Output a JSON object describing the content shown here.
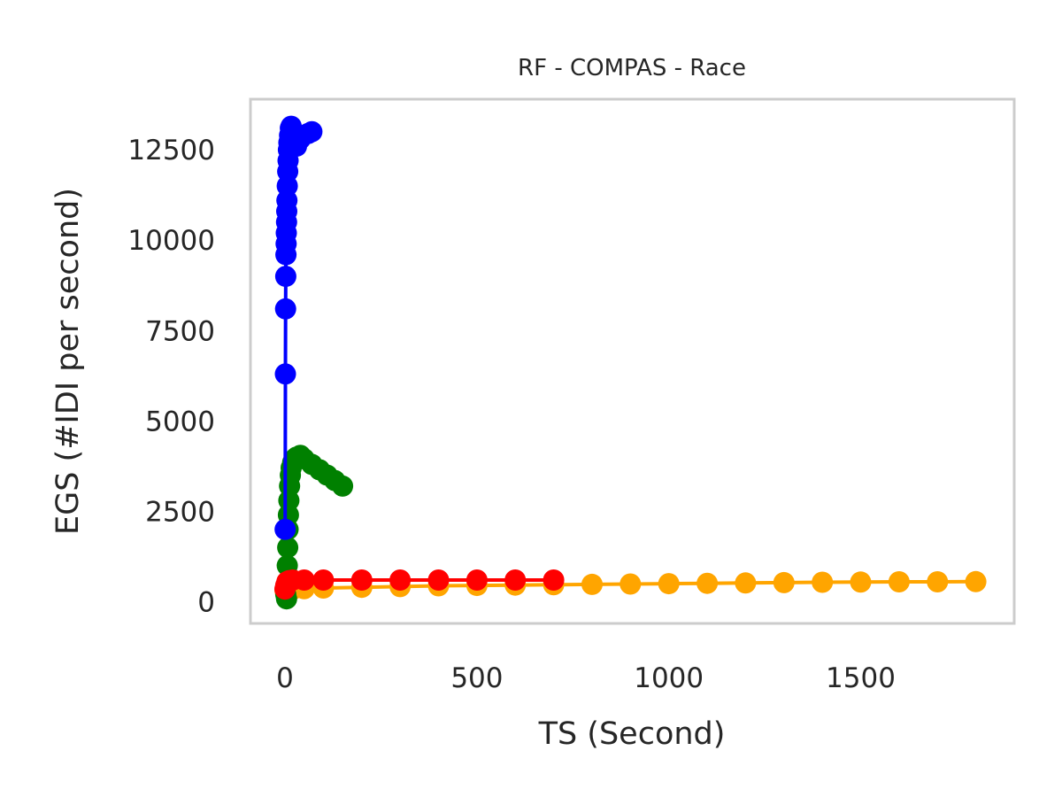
{
  "chart_data": {
    "type": "line",
    "title": "RF - COMPAS - Race",
    "xlabel": "TS (Second)",
    "ylabel": "EGS (#IDI  per second)",
    "xlim": [
      -90,
      1900
    ],
    "ylim": [
      -600,
      13900
    ],
    "x_ticks": [
      0,
      500,
      1000,
      1500
    ],
    "y_ticks": [
      0,
      2500,
      5000,
      7500,
      10000,
      12500
    ],
    "x_tick_labels": [
      "0",
      "500",
      "1000",
      "1500"
    ],
    "y_tick_labels": [
      "0",
      "2500",
      "5000",
      "7500",
      "10000",
      "12500"
    ],
    "grid": false,
    "legend": "none",
    "series": [
      {
        "color": "#ffa500",
        "x": [
          0,
          5,
          20,
          50,
          100,
          200,
          300,
          400,
          500,
          600,
          700,
          800,
          900,
          1000,
          1100,
          1200,
          1300,
          1400,
          1500,
          1600,
          1700,
          1800
        ],
        "y": [
          320,
          330,
          340,
          360,
          380,
          400,
          420,
          440,
          450,
          460,
          470,
          480,
          490,
          500,
          510,
          520,
          530,
          540,
          545,
          550,
          550,
          555
        ]
      },
      {
        "color": "#008000",
        "x": [
          2,
          4,
          5,
          6,
          7,
          8,
          9,
          10,
          12,
          14,
          16,
          20,
          25,
          30,
          40,
          50,
          70,
          90,
          110,
          130,
          150
        ],
        "y": [
          200,
          80,
          500,
          1000,
          1500,
          2000,
          2400,
          2800,
          3200,
          3500,
          3700,
          3850,
          3950,
          4000,
          4050,
          3950,
          3800,
          3650,
          3500,
          3350,
          3200
        ]
      },
      {
        "color": "#0000ff",
        "x": [
          0.5,
          1,
          1.5,
          2,
          2.5,
          3,
          3.5,
          4,
          4.5,
          5,
          6,
          7,
          8,
          9,
          10,
          12,
          14,
          16,
          20,
          30,
          40,
          60,
          70
        ],
        "y": [
          2000,
          6300,
          8100,
          9000,
          9600,
          9900,
          10200,
          10500,
          10800,
          11100,
          11500,
          11900,
          12200,
          12500,
          12700,
          12900,
          13100,
          13150,
          12800,
          12600,
          12800,
          12950,
          13000
        ]
      },
      {
        "color": "#ff0000",
        "x": [
          0,
          2,
          5,
          10,
          20,
          50,
          100,
          200,
          300,
          400,
          500,
          600,
          700
        ],
        "y": [
          350,
          450,
          550,
          580,
          600,
          600,
          600,
          600,
          600,
          600,
          600,
          600,
          600
        ]
      }
    ]
  }
}
